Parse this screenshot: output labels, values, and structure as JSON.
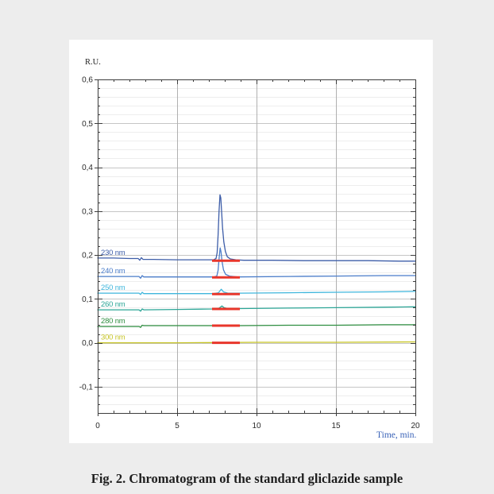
{
  "figure": {
    "caption": "Fig. 2. Chromatogram of the standard gliclazide sample"
  },
  "colors": {
    "page_background": "#ededed",
    "panel_background": "#ffffff",
    "axis": "#3c3c3c",
    "grid_major": "#c6c6c6",
    "grid_minor": "#ededed",
    "grid_vertical": "#b0b0b0",
    "baseline_marker": "#e8362b"
  },
  "chart_data": {
    "type": "line",
    "xlabel": "Time, min.",
    "ylabel": "R.U.",
    "xlim": [
      0,
      20
    ],
    "ylim": [
      -0.16,
      0.6
    ],
    "grid": true,
    "x_ticks": [
      {
        "value": 0,
        "label": "0"
      },
      {
        "value": 5,
        "label": "5"
      },
      {
        "value": 10,
        "label": "10"
      },
      {
        "value": 15,
        "label": "15"
      },
      {
        "value": 20,
        "label": "20"
      }
    ],
    "y_ticks": [
      {
        "value": 0.6,
        "label": "0,6"
      },
      {
        "value": 0.5,
        "label": "0,5"
      },
      {
        "value": 0.4,
        "label": "0,4"
      },
      {
        "value": 0.3,
        "label": "0,3"
      },
      {
        "value": 0.2,
        "label": "0,2"
      },
      {
        "value": 0.1,
        "label": "0,1"
      },
      {
        "value": 0.0,
        "label": "0,0"
      },
      {
        "value": -0.1,
        "label": "-0,1"
      }
    ],
    "series": [
      {
        "name": "230 nm",
        "color": "#3d5da8",
        "points": [
          [
            0,
            0.193
          ],
          [
            1,
            0.193
          ],
          [
            2,
            0.192
          ],
          [
            2.55,
            0.192
          ],
          [
            2.65,
            0.188
          ],
          [
            2.75,
            0.194
          ],
          [
            2.85,
            0.19
          ],
          [
            3.5,
            0.19
          ],
          [
            5,
            0.189
          ],
          [
            6.5,
            0.189
          ],
          [
            7.3,
            0.189
          ],
          [
            7.45,
            0.192
          ],
          [
            7.52,
            0.205
          ],
          [
            7.58,
            0.245
          ],
          [
            7.64,
            0.3
          ],
          [
            7.7,
            0.337
          ],
          [
            7.75,
            0.33
          ],
          [
            7.8,
            0.3
          ],
          [
            7.86,
            0.262
          ],
          [
            7.94,
            0.23
          ],
          [
            8.04,
            0.208
          ],
          [
            8.16,
            0.196
          ],
          [
            8.35,
            0.191
          ],
          [
            8.7,
            0.189
          ],
          [
            9.2,
            0.188
          ],
          [
            11,
            0.188
          ],
          [
            13,
            0.187
          ],
          [
            15,
            0.187
          ],
          [
            17,
            0.187
          ],
          [
            19,
            0.186
          ],
          [
            20,
            0.186
          ]
        ],
        "baseline_marker": {
          "x": [
            7.2,
            8.95
          ],
          "y": 0.187
        }
      },
      {
        "name": "240 nm",
        "color": "#4a7cc9",
        "points": [
          [
            0,
            0.151
          ],
          [
            2,
            0.151
          ],
          [
            2.6,
            0.151
          ],
          [
            2.7,
            0.147
          ],
          [
            2.8,
            0.153
          ],
          [
            2.9,
            0.15
          ],
          [
            5,
            0.15
          ],
          [
            7.3,
            0.15
          ],
          [
            7.5,
            0.152
          ],
          [
            7.58,
            0.165
          ],
          [
            7.65,
            0.195
          ],
          [
            7.71,
            0.216
          ],
          [
            7.76,
            0.208
          ],
          [
            7.83,
            0.185
          ],
          [
            7.92,
            0.166
          ],
          [
            8.05,
            0.156
          ],
          [
            8.3,
            0.152
          ],
          [
            8.8,
            0.15
          ],
          [
            12,
            0.151
          ],
          [
            15,
            0.152
          ],
          [
            18,
            0.153
          ],
          [
            20,
            0.153
          ]
        ],
        "baseline_marker": {
          "x": [
            7.2,
            8.95
          ],
          "y": 0.149
        }
      },
      {
        "name": "250 nm",
        "color": "#3fb6dc",
        "points": [
          [
            0,
            0.113
          ],
          [
            2.6,
            0.113
          ],
          [
            2.7,
            0.11
          ],
          [
            2.8,
            0.115
          ],
          [
            2.9,
            0.112
          ],
          [
            5,
            0.112
          ],
          [
            7.3,
            0.112
          ],
          [
            7.6,
            0.114
          ],
          [
            7.78,
            0.122
          ],
          [
            7.92,
            0.116
          ],
          [
            8.2,
            0.113
          ],
          [
            9,
            0.113
          ],
          [
            12,
            0.114
          ],
          [
            15,
            0.115
          ],
          [
            18,
            0.116
          ],
          [
            20,
            0.117
          ]
        ],
        "baseline_marker": {
          "x": [
            7.2,
            8.95
          ],
          "y": 0.111
        }
      },
      {
        "name": "260 nm",
        "color": "#2ba596",
        "points": [
          [
            0,
            0.075
          ],
          [
            2.6,
            0.075
          ],
          [
            2.7,
            0.072
          ],
          [
            2.8,
            0.077
          ],
          [
            2.9,
            0.075
          ],
          [
            5,
            0.076
          ],
          [
            7.3,
            0.077
          ],
          [
            7.65,
            0.079
          ],
          [
            7.82,
            0.084
          ],
          [
            7.96,
            0.08
          ],
          [
            8.2,
            0.078
          ],
          [
            9,
            0.078
          ],
          [
            12,
            0.079
          ],
          [
            15,
            0.08
          ],
          [
            18,
            0.081
          ],
          [
            20,
            0.082
          ]
        ],
        "baseline_marker": {
          "x": [
            7.2,
            8.95
          ],
          "y": 0.077
        }
      },
      {
        "name": "280 nm",
        "color": "#2f8e41",
        "points": [
          [
            0,
            0.037
          ],
          [
            2.6,
            0.037
          ],
          [
            2.7,
            0.035
          ],
          [
            2.8,
            0.04
          ],
          [
            2.9,
            0.039
          ],
          [
            5,
            0.039
          ],
          [
            7.3,
            0.039
          ],
          [
            9,
            0.039
          ],
          [
            12,
            0.04
          ],
          [
            15,
            0.04
          ],
          [
            18,
            0.041
          ],
          [
            20,
            0.041
          ]
        ],
        "baseline_marker": {
          "x": [
            7.2,
            8.95
          ],
          "y": 0.039
        }
      },
      {
        "name": "300 nm",
        "color": "#c6c424",
        "points": [
          [
            0,
            0.0
          ],
          [
            5,
            0.0
          ],
          [
            10,
            0.001
          ],
          [
            15,
            0.001
          ],
          [
            20,
            0.002
          ]
        ],
        "baseline_marker": {
          "x": [
            7.2,
            8.95
          ],
          "y": 0.0
        }
      }
    ]
  }
}
